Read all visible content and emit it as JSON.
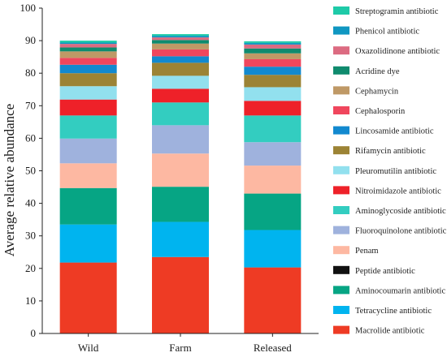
{
  "chart_data": {
    "type": "bar",
    "stacked": true,
    "title": "",
    "xlabel": "",
    "ylabel": "Average relative abundance",
    "ylim": [
      0,
      100
    ],
    "yticks": [
      0,
      10,
      20,
      30,
      40,
      50,
      60,
      70,
      80,
      90,
      100
    ],
    "categories": [
      "Wild",
      "Farm",
      "Released"
    ],
    "legend_position": "right",
    "series": [
      {
        "name": "Macrolide antibiotic",
        "color": "#ee3b24",
        "values": [
          21.8,
          23.5,
          20.3
        ]
      },
      {
        "name": "Tetracycline antibiotic",
        "color": "#00b4ef",
        "values": [
          11.7,
          10.8,
          11.5
        ]
      },
      {
        "name": "Aminocoumarin antibiotic",
        "color": "#06a584",
        "values": [
          11.2,
          10.8,
          11.2
        ]
      },
      {
        "name": "Peptide antibiotic",
        "color": "#111111",
        "values": [
          0,
          0,
          0
        ]
      },
      {
        "name": "Penam",
        "color": "#fdb8a2",
        "values": [
          7.6,
          10.2,
          8.6
        ]
      },
      {
        "name": "Fluoroquinolone antibiotic",
        "color": "#9fb2dd",
        "values": [
          7.6,
          8.7,
          7.2
        ]
      },
      {
        "name": "Aminoglycoside antibiotic",
        "color": "#33cdc0",
        "values": [
          7.1,
          7.0,
          8.2
        ]
      },
      {
        "name": "Nitroimidazole antibiotic",
        "color": "#ee2129",
        "values": [
          4.9,
          4.2,
          4.5
        ]
      },
      {
        "name": "Pleuromutilin antibiotic",
        "color": "#92e0ee",
        "values": [
          4.1,
          4.0,
          4.2
        ]
      },
      {
        "name": "Rifamycin antibiotic",
        "color": "#9c8335",
        "values": [
          4.0,
          4.0,
          3.8
        ]
      },
      {
        "name": "Lincosamide antibiotic",
        "color": "#1289cf",
        "values": [
          2.6,
          2.0,
          2.5
        ]
      },
      {
        "name": "Cephalosporin",
        "color": "#f0465d",
        "values": [
          2.1,
          2.1,
          2.3
        ]
      },
      {
        "name": "Cephamycin",
        "color": "#bf9966",
        "values": [
          2.0,
          1.8,
          1.8
        ]
      },
      {
        "name": "Acridine dye",
        "color": "#0f8b6e",
        "values": [
          1.2,
          1.1,
          1.5
        ]
      },
      {
        "name": "Oxazolidinone antibiotic",
        "color": "#dc6b81",
        "values": [
          1.1,
          0.8,
          1.2
        ]
      },
      {
        "name": "Phenicol antibiotic",
        "color": "#1097c1",
        "values": [
          0.4,
          0.5,
          0.5
        ]
      },
      {
        "name": "Streptogramin antibiotic",
        "color": "#1ecaa8",
        "values": [
          0.6,
          0.5,
          0.5
        ]
      }
    ]
  }
}
